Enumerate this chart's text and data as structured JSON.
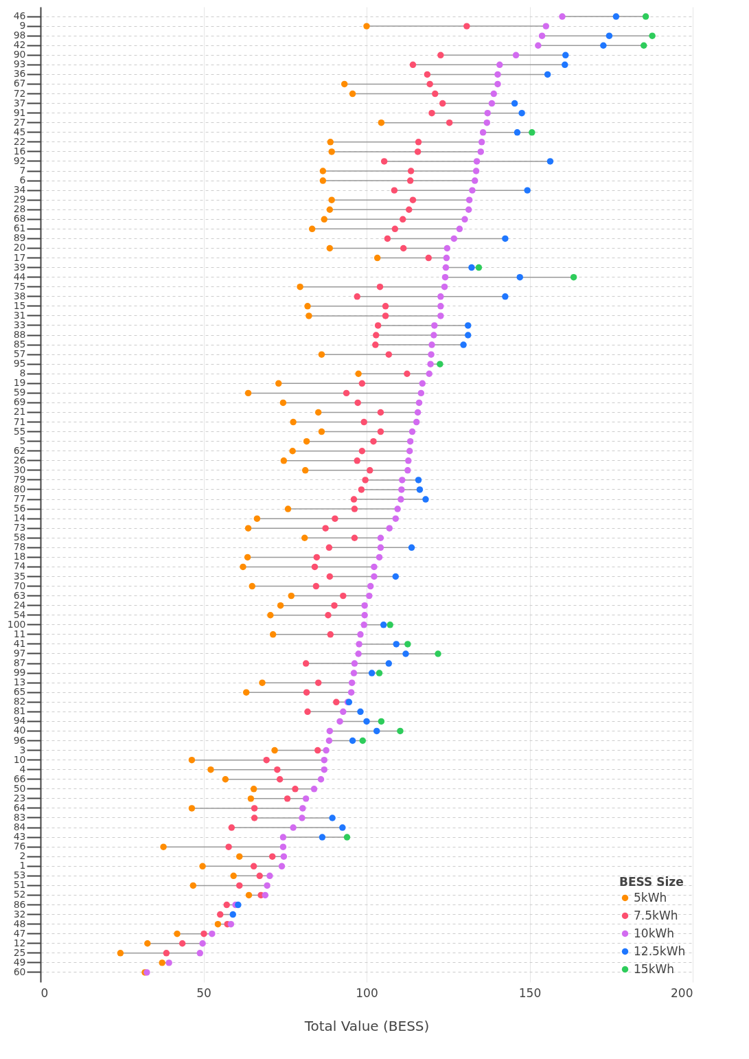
{
  "chart_data": {
    "type": "scatter",
    "xlabel": "Total Value (BESS)",
    "legend_title": "BESS Size",
    "legend": "bottom right",
    "grid": true,
    "marker": "circle",
    "orientation": "horizontal",
    "xlim": [
      0,
      200
    ],
    "xticks": [
      0,
      50,
      100,
      150,
      200
    ],
    "categories": [
      "46",
      "9",
      "98",
      "42",
      "90",
      "93",
      "36",
      "67",
      "72",
      "37",
      "91",
      "27",
      "45",
      "22",
      "16",
      "92",
      "7",
      "6",
      "34",
      "29",
      "28",
      "68",
      "61",
      "89",
      "20",
      "17",
      "39",
      "44",
      "75",
      "38",
      "15",
      "31",
      "33",
      "88",
      "85",
      "57",
      "95",
      "8",
      "19",
      "59",
      "69",
      "21",
      "71",
      "55",
      "5",
      "62",
      "26",
      "30",
      "79",
      "80",
      "77",
      "56",
      "14",
      "73",
      "58",
      "78",
      "18",
      "74",
      "35",
      "70",
      "63",
      "24",
      "54",
      "100",
      "11",
      "41",
      "97",
      "87",
      "99",
      "13",
      "65",
      "82",
      "81",
      "94",
      "40",
      "96",
      "3",
      "10",
      "4",
      "66",
      "50",
      "23",
      "64",
      "83",
      "84",
      "43",
      "76",
      "2",
      "1",
      "53",
      "51",
      "52",
      "86",
      "32",
      "48",
      "47",
      "12",
      "25",
      "49",
      "60"
    ],
    "series": [
      {
        "name": "5kWh",
        "color": "#ff8c00",
        "values": [
          null,
          100,
          null,
          null,
          null,
          null,
          null,
          93.2,
          95.7,
          null,
          null,
          104.5,
          null,
          88.9,
          89.3,
          null,
          86.6,
          86.6,
          null,
          89.3,
          88.7,
          87,
          83.3,
          null,
          88.7,
          103.3,
          null,
          null,
          79.6,
          null,
          81.9,
          82.3,
          null,
          null,
          null,
          86.2,
          null,
          97.5,
          73,
          63.7,
          74.4,
          85.2,
          77.5,
          86.2,
          81.6,
          77.3,
          74.6,
          81.2,
          null,
          null,
          null,
          75.9,
          66.4,
          63.7,
          81,
          null,
          63.5,
          62.1,
          null,
          64.9,
          76.9,
          73.6,
          70.5,
          null,
          71.3,
          null,
          null,
          null,
          null,
          68,
          63.1,
          null,
          null,
          null,
          null,
          null,
          71.8,
          46.4,
          52.2,
          56.7,
          65.4,
          64.5,
          46.4,
          null,
          null,
          null,
          37.7,
          61,
          49.7,
          59.2,
          46.8,
          63.9,
          null,
          null,
          54.4,
          41.9,
          32.8,
          24.5,
          37.3,
          32
        ]
      },
      {
        "name": "7.5kWh",
        "color": "#fc4f6f",
        "values": [
          null,
          130.7,
          null,
          null,
          122.7,
          114.2,
          118.6,
          119.4,
          121,
          123.3,
          120,
          125.4,
          null,
          115.9,
          115.7,
          105.4,
          113.6,
          113.4,
          108.5,
          114.2,
          113,
          111.1,
          108.7,
          106.4,
          111.3,
          119,
          null,
          null,
          104.1,
          97.1,
          105.8,
          105.8,
          103.5,
          102.9,
          102.7,
          106.8,
          null,
          112.4,
          98.6,
          93.8,
          97.3,
          104.3,
          99.2,
          104.3,
          102.1,
          98.6,
          97.1,
          101,
          99.6,
          98.4,
          96.1,
          96.3,
          90.3,
          87.4,
          96.3,
          88.5,
          84.7,
          84.1,
          88.7,
          84.5,
          92.8,
          90.1,
          88.2,
          null,
          88.9,
          null,
          null,
          81.4,
          null,
          85.2,
          81.6,
          90.7,
          81.9,
          null,
          null,
          null,
          85,
          69.3,
          72.6,
          73.4,
          78.1,
          75.7,
          65.6,
          65.6,
          58.6,
          null,
          57.7,
          71.1,
          65.4,
          67.2,
          61,
          67.6,
          57.1,
          55.1,
          57.3,
          50.1,
          43.5,
          38.6,
          null,
          null
        ]
      },
      {
        "name": "10kWh",
        "color": "#d26bf0",
        "values": [
          160,
          155,
          153.8,
          152.6,
          145.8,
          140.8,
          140.2,
          140.2,
          139,
          138.4,
          137.1,
          136.9,
          135.7,
          135.3,
          135,
          133.8,
          133.6,
          133.2,
          132.4,
          131.5,
          131.3,
          130.1,
          128.5,
          126.8,
          124.7,
          124.5,
          124.3,
          124.1,
          123.9,
          122.7,
          122.7,
          122.7,
          120.8,
          120.6,
          120,
          119.8,
          119.6,
          119.2,
          117.1,
          116.7,
          116.1,
          115.7,
          115.3,
          114,
          113.4,
          113.2,
          112.8,
          112.6,
          110.9,
          110.7,
          110.5,
          109.5,
          108.9,
          107,
          104.3,
          104.3,
          103.9,
          102.3,
          102.3,
          101.2,
          100.8,
          99.4,
          99.4,
          99.2,
          98.1,
          97.7,
          97.5,
          96.3,
          96.1,
          95.5,
          95.3,
          94.2,
          92.8,
          91.8,
          88.7,
          88.5,
          87.6,
          87,
          87,
          86,
          83.9,
          81.4,
          80.4,
          80.2,
          77.5,
          74.4,
          74.4,
          74.6,
          74,
          70.3,
          69.5,
          68.9,
          59.8,
          null,
          58.4,
          52.6,
          49.7,
          48.9,
          39.4,
          32.6
        ]
      },
      {
        "name": "12.5kWh",
        "color": "#1f77ff",
        "values": [
          176.5,
          null,
          174.4,
          172.6,
          161,
          160.8,
          155.5,
          null,
          null,
          145.4,
          147.6,
          null,
          146.2,
          null,
          null,
          156.3,
          null,
          null,
          149.3,
          null,
          null,
          null,
          null,
          142.5,
          null,
          null,
          132.2,
          147,
          null,
          142.5,
          null,
          null,
          131.1,
          131.1,
          129.7,
          null,
          null,
          null,
          null,
          null,
          null,
          null,
          null,
          null,
          null,
          null,
          null,
          null,
          115.9,
          116.3,
          118.1,
          null,
          null,
          null,
          null,
          113.8,
          null,
          null,
          108.9,
          null,
          null,
          null,
          null,
          105.2,
          null,
          109.1,
          112,
          106.8,
          101.6,
          null,
          null,
          94.6,
          98.1,
          100,
          103.1,
          95.7,
          null,
          null,
          null,
          null,
          null,
          null,
          null,
          89.5,
          92.6,
          86.4,
          null,
          null,
          null,
          null,
          null,
          null,
          60.6,
          59,
          null,
          null,
          null,
          null,
          null,
          null
        ]
      },
      {
        "name": "15kWh",
        "color": "#2ecc5b",
        "values": [
          185.6,
          null,
          187.6,
          185,
          null,
          null,
          null,
          null,
          null,
          null,
          null,
          null,
          150.7,
          null,
          null,
          null,
          null,
          null,
          null,
          null,
          null,
          null,
          null,
          null,
          null,
          null,
          134.4,
          163.5,
          null,
          null,
          null,
          null,
          null,
          null,
          null,
          null,
          122.5,
          null,
          null,
          null,
          null,
          null,
          null,
          null,
          null,
          null,
          null,
          null,
          null,
          null,
          null,
          null,
          null,
          null,
          null,
          null,
          null,
          null,
          null,
          null,
          null,
          null,
          null,
          107.2,
          null,
          112.6,
          121.9,
          null,
          103.9,
          null,
          null,
          null,
          null,
          104.5,
          110.3,
          98.8,
          null,
          null,
          null,
          null,
          null,
          null,
          null,
          null,
          null,
          94,
          null,
          null,
          null,
          null,
          null,
          null,
          null,
          null,
          null,
          null,
          null,
          null,
          null,
          null
        ]
      }
    ]
  }
}
